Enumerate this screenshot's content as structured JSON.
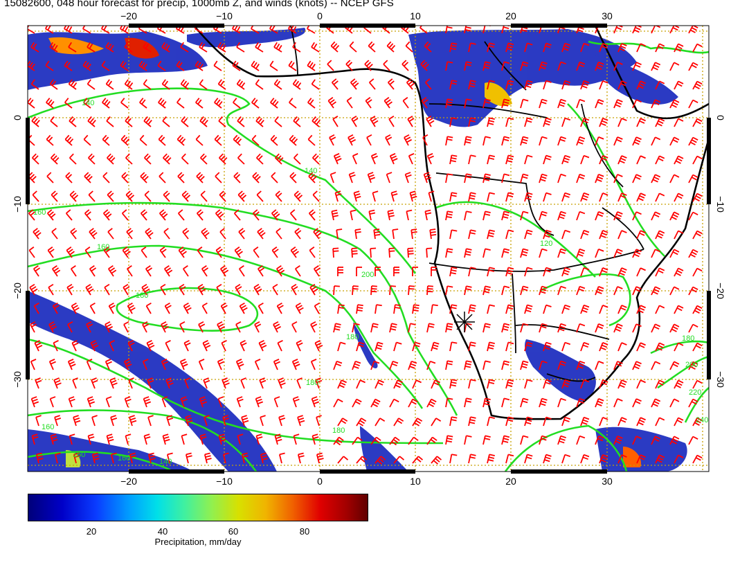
{
  "title": "15082600, 048 hour forecast for precip, 1000mb Z, and winds (knots) -- NCEP GFS",
  "axes": {
    "lon_ticks": [
      "−20",
      "−10",
      "0",
      "10",
      "20",
      "30"
    ],
    "lat_ticks": [
      "0",
      "−10",
      "−20",
      "−30"
    ]
  },
  "contour_labels": [
    "140",
    "140",
    "160",
    "160",
    "180",
    "200",
    "180",
    "180",
    "180",
    "160",
    "160",
    "160",
    "140",
    "140",
    "120",
    "180",
    "200",
    "220",
    "240"
  ],
  "colorbar": {
    "ticks": [
      "20",
      "40",
      "60",
      "80"
    ],
    "label": "Precipitation, mm/day"
  },
  "colors": {
    "contour": "#22dd22",
    "barb": "#ff0000",
    "grid": "#c8a000",
    "coast": "#000000"
  }
}
